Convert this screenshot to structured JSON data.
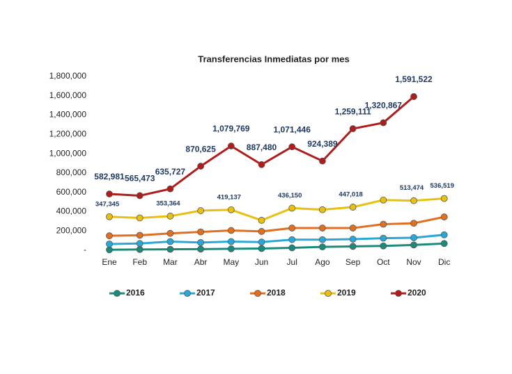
{
  "chart_data": {
    "type": "line",
    "title": "Transferencias Inmediatas por mes",
    "categories": [
      "Ene",
      "Feb",
      "Mar",
      "Abr",
      "May",
      "Jun",
      "Jul",
      "Ago",
      "Sep",
      "Oct",
      "Nov",
      "Dic"
    ],
    "ylim": [
      0,
      1800000
    ],
    "yticks": [
      {
        "value": 0,
        "label": "-"
      },
      {
        "value": 200000,
        "label": "200,000"
      },
      {
        "value": 400000,
        "label": "400,000"
      },
      {
        "value": 600000,
        "label": "600,000"
      },
      {
        "value": 800000,
        "label": "800,000"
      },
      {
        "value": 1000000,
        "label": "1,000,000"
      },
      {
        "value": 1200000,
        "label": "1,200,000"
      },
      {
        "value": 1400000,
        "label": "1,400,000"
      },
      {
        "value": 1600000,
        "label": "1,600,000"
      },
      {
        "value": 1800000,
        "label": "1,800,000"
      }
    ],
    "legend": "bottom",
    "series": [
      {
        "name": "2016",
        "color": "#1a8a7a",
        "values": [
          5000,
          8000,
          10000,
          12000,
          15000,
          18000,
          25000,
          35000,
          40000,
          45000,
          55000,
          70000
        ]
      },
      {
        "name": "2017",
        "color": "#29a8d8",
        "values": [
          65000,
          70000,
          90000,
          80000,
          90000,
          85000,
          110000,
          110000,
          115000,
          125000,
          130000,
          160000
        ]
      },
      {
        "name": "2018",
        "color": "#e07020",
        "values": [
          150000,
          155000,
          175000,
          190000,
          205000,
          195000,
          230000,
          230000,
          230000,
          270000,
          280000,
          345000
        ]
      },
      {
        "name": "2019",
        "color": "#e8c010",
        "values": [
          347345,
          335000,
          353364,
          410000,
          419137,
          310000,
          436150,
          420000,
          447018,
          520000,
          513474,
          536519
        ],
        "value_labels": [
          "347,345",
          null,
          "353,364",
          null,
          "419,137",
          null,
          "436,150",
          null,
          "447,018",
          null,
          "513,474",
          "536,519"
        ]
      },
      {
        "name": "2020",
        "color": "#b01c1c",
        "values": [
          582981,
          565473,
          635727,
          870625,
          1079769,
          887480,
          1071446,
          924389,
          1259111,
          1320867,
          1591522,
          null
        ],
        "value_labels": [
          "582,981",
          "565,473",
          "635,727",
          "870,625",
          "1,079,769",
          "887,480",
          "1,071,446",
          "924,389",
          "1,259,111",
          "1,320,867",
          "1,591,522",
          null
        ]
      }
    ]
  }
}
